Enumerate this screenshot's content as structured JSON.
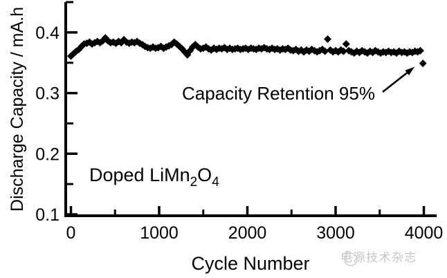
{
  "chart_data": {
    "type": "scatter",
    "title": "",
    "xlabel": "Cycle Number",
    "ylabel": "Discharge Capacity / mA.h",
    "xlim": [
      0,
      4000
    ],
    "ylim": [
      0.1,
      0.45
    ],
    "grid": false,
    "legend": "none",
    "axis_color": "#000000",
    "marker": {
      "shape": "diamond",
      "color": "#000000",
      "size": 11
    },
    "x_ticks": [
      0,
      1000,
      2000,
      3000,
      4000
    ],
    "x_tick_labels": [
      "0",
      "1000",
      "2000",
      "3000",
      "4000"
    ],
    "x_minor_ticks": [
      500,
      1500,
      2500,
      3500
    ],
    "y_ticks": [
      0.1,
      0.2,
      0.3,
      0.4
    ],
    "y_tick_labels": [
      "0.1",
      "0.2",
      "0.3",
      "0.4"
    ],
    "y_minor_ticks": [
      0.15,
      0.25,
      0.35,
      0.45
    ],
    "annotation": {
      "text": "Capacity Retention 95%",
      "points_to": "last-point"
    },
    "inset_label": {
      "text": "Doped LiMn2O4",
      "parts": [
        [
          "Doped LiMn",
          0
        ],
        [
          "2",
          1
        ],
        [
          "O",
          0
        ],
        [
          "4",
          1
        ]
      ]
    },
    "series": [
      {
        "name": "Doped LiMn2O4 discharge capacity",
        "points": [
          [
            0,
            0.361
          ],
          [
            30,
            0.365
          ],
          [
            60,
            0.369
          ],
          [
            90,
            0.372
          ],
          [
            120,
            0.377
          ],
          [
            150,
            0.381
          ],
          [
            180,
            0.382
          ],
          [
            210,
            0.384
          ],
          [
            240,
            0.381
          ],
          [
            270,
            0.383
          ],
          [
            300,
            0.385
          ],
          [
            330,
            0.383
          ],
          [
            360,
            0.386
          ],
          [
            390,
            0.391
          ],
          [
            420,
            0.386
          ],
          [
            450,
            0.383
          ],
          [
            480,
            0.384
          ],
          [
            510,
            0.382
          ],
          [
            540,
            0.385
          ],
          [
            570,
            0.383
          ],
          [
            600,
            0.388
          ],
          [
            630,
            0.384
          ],
          [
            660,
            0.382
          ],
          [
            690,
            0.384
          ],
          [
            720,
            0.383
          ],
          [
            750,
            0.385
          ],
          [
            780,
            0.382
          ],
          [
            810,
            0.38
          ],
          [
            840,
            0.377
          ],
          [
            870,
            0.375
          ],
          [
            900,
            0.374
          ],
          [
            930,
            0.376
          ],
          [
            960,
            0.374
          ],
          [
            990,
            0.375
          ],
          [
            1020,
            0.377
          ],
          [
            1050,
            0.374
          ],
          [
            1080,
            0.376
          ],
          [
            1110,
            0.378
          ],
          [
            1140,
            0.38
          ],
          [
            1170,
            0.384
          ],
          [
            1200,
            0.381
          ],
          [
            1230,
            0.377
          ],
          [
            1260,
            0.373
          ],
          [
            1290,
            0.368
          ],
          [
            1320,
            0.363
          ],
          [
            1350,
            0.37
          ],
          [
            1380,
            0.376
          ],
          [
            1410,
            0.38
          ],
          [
            1440,
            0.376
          ],
          [
            1470,
            0.373
          ],
          [
            1500,
            0.374
          ],
          [
            1530,
            0.376
          ],
          [
            1560,
            0.373
          ],
          [
            1590,
            0.371
          ],
          [
            1620,
            0.374
          ],
          [
            1650,
            0.372
          ],
          [
            1680,
            0.374
          ],
          [
            1710,
            0.373
          ],
          [
            1740,
            0.375
          ],
          [
            1770,
            0.372
          ],
          [
            1800,
            0.374
          ],
          [
            1830,
            0.372
          ],
          [
            1860,
            0.373
          ],
          [
            1890,
            0.374
          ],
          [
            1920,
            0.372
          ],
          [
            1950,
            0.373
          ],
          [
            1980,
            0.374
          ],
          [
            2010,
            0.372
          ],
          [
            2040,
            0.374
          ],
          [
            2070,
            0.373
          ],
          [
            2100,
            0.372
          ],
          [
            2130,
            0.374
          ],
          [
            2160,
            0.373
          ],
          [
            2190,
            0.375
          ],
          [
            2220,
            0.373
          ],
          [
            2250,
            0.372
          ],
          [
            2280,
            0.374
          ],
          [
            2310,
            0.372
          ],
          [
            2340,
            0.373
          ],
          [
            2370,
            0.371
          ],
          [
            2400,
            0.373
          ],
          [
            2430,
            0.372
          ],
          [
            2460,
            0.374
          ],
          [
            2490,
            0.371
          ],
          [
            2520,
            0.37
          ],
          [
            2550,
            0.372
          ],
          [
            2580,
            0.369
          ],
          [
            2610,
            0.371
          ],
          [
            2640,
            0.368
          ],
          [
            2670,
            0.371
          ],
          [
            2700,
            0.369
          ],
          [
            2730,
            0.372
          ],
          [
            2760,
            0.37
          ],
          [
            2790,
            0.368
          ],
          [
            2820,
            0.37
          ],
          [
            2850,
            0.372
          ],
          [
            2880,
            0.369
          ],
          [
            2910,
            0.389
          ],
          [
            2940,
            0.371
          ],
          [
            2970,
            0.368
          ],
          [
            3000,
            0.37
          ],
          [
            3030,
            0.368
          ],
          [
            3060,
            0.371
          ],
          [
            3090,
            0.369
          ],
          [
            3120,
            0.381
          ],
          [
            3150,
            0.37
          ],
          [
            3180,
            0.368
          ],
          [
            3210,
            0.366
          ],
          [
            3240,
            0.369
          ],
          [
            3270,
            0.367
          ],
          [
            3300,
            0.37
          ],
          [
            3330,
            0.368
          ],
          [
            3360,
            0.366
          ],
          [
            3390,
            0.369
          ],
          [
            3420,
            0.367
          ],
          [
            3450,
            0.37
          ],
          [
            3480,
            0.368
          ],
          [
            3510,
            0.366
          ],
          [
            3540,
            0.368
          ],
          [
            3570,
            0.367
          ],
          [
            3600,
            0.369
          ],
          [
            3630,
            0.367
          ],
          [
            3660,
            0.368
          ],
          [
            3690,
            0.366
          ],
          [
            3720,
            0.369
          ],
          [
            3750,
            0.367
          ],
          [
            3780,
            0.368
          ],
          [
            3810,
            0.366
          ],
          [
            3840,
            0.368
          ],
          [
            3870,
            0.367
          ],
          [
            3900,
            0.369
          ],
          [
            3930,
            0.368
          ],
          [
            3960,
            0.37
          ],
          [
            3990,
            0.349
          ]
        ]
      }
    ]
  },
  "watermark": {
    "text": "电源技术杂志",
    "color": "#c6c6c6",
    "icon": "magazine-logo"
  }
}
